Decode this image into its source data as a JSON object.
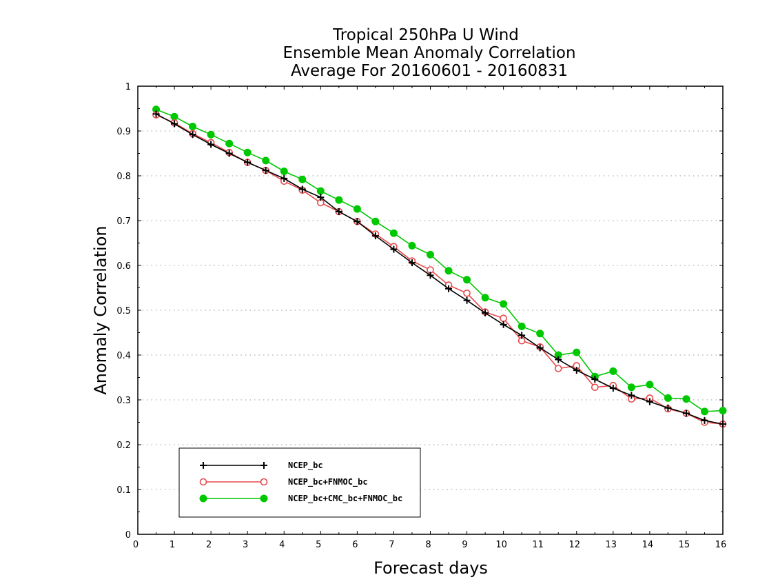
{
  "chart_data": {
    "type": "line",
    "title_lines": [
      "Tropical 250hPa U Wind",
      "Ensemble Mean Anomaly Correlation",
      "Average For 20160601 - 20160831"
    ],
    "xlabel": "Forecast days",
    "ylabel": "Anomaly Correlation",
    "xlim": [
      0,
      16
    ],
    "ylim": [
      0,
      1
    ],
    "xticks": [
      "0",
      "1",
      "2",
      "3",
      "4",
      "5",
      "6",
      "7",
      "8",
      "9",
      "10",
      "11",
      "12",
      "13",
      "14",
      "15",
      "16"
    ],
    "yticks": [
      "0",
      "0.1",
      "0.2",
      "0.3",
      "0.4",
      "0.5",
      "0.6",
      "0.7",
      "0.8",
      "0.9",
      "1"
    ],
    "grid": "horizontal dotted",
    "legend_position": "bottom-left",
    "x": [
      0.5,
      1,
      1.5,
      2,
      2.5,
      3,
      3.5,
      4,
      4.5,
      5,
      5.5,
      6,
      6.5,
      7,
      7.5,
      8,
      8.5,
      9,
      9.5,
      10,
      10.5,
      11,
      11.5,
      12,
      12.5,
      13,
      13.5,
      14,
      14.5,
      15,
      15.5,
      16
    ],
    "series": [
      {
        "name": "NCEP_bc",
        "color": "#000000",
        "marker": "plus",
        "values": [
          0.938,
          0.916,
          0.892,
          0.87,
          0.85,
          0.83,
          0.812,
          0.794,
          0.77,
          0.752,
          0.72,
          0.698,
          0.666,
          0.636,
          0.606,
          0.578,
          0.548,
          0.522,
          0.494,
          0.468,
          0.444,
          0.416,
          0.39,
          0.366,
          0.346,
          0.326,
          0.31,
          0.296,
          0.282,
          0.27,
          0.254,
          0.246
        ]
      },
      {
        "name": "NCEP_bc+FNMOC_bc",
        "color": "#e8474a",
        "marker": "open-circle",
        "values": [
          0.936,
          0.918,
          0.894,
          0.874,
          0.852,
          0.83,
          0.812,
          0.788,
          0.768,
          0.74,
          0.72,
          0.698,
          0.67,
          0.642,
          0.61,
          0.59,
          0.556,
          0.538,
          0.496,
          0.482,
          0.432,
          0.418,
          0.37,
          0.376,
          0.328,
          0.332,
          0.302,
          0.304,
          0.28,
          0.27,
          0.25,
          0.246
        ]
      },
      {
        "name": "NCEP_bc+CMC_bc+FNMOC_bc",
        "color": "#00c800",
        "marker": "filled-circle",
        "values": [
          0.948,
          0.932,
          0.91,
          0.892,
          0.872,
          0.852,
          0.834,
          0.81,
          0.792,
          0.766,
          0.746,
          0.726,
          0.698,
          0.672,
          0.644,
          0.624,
          0.588,
          0.568,
          0.528,
          0.514,
          0.464,
          0.448,
          0.4,
          0.406,
          0.352,
          0.364,
          0.328,
          0.334,
          0.304,
          0.302,
          0.274,
          0.276
        ]
      }
    ]
  }
}
